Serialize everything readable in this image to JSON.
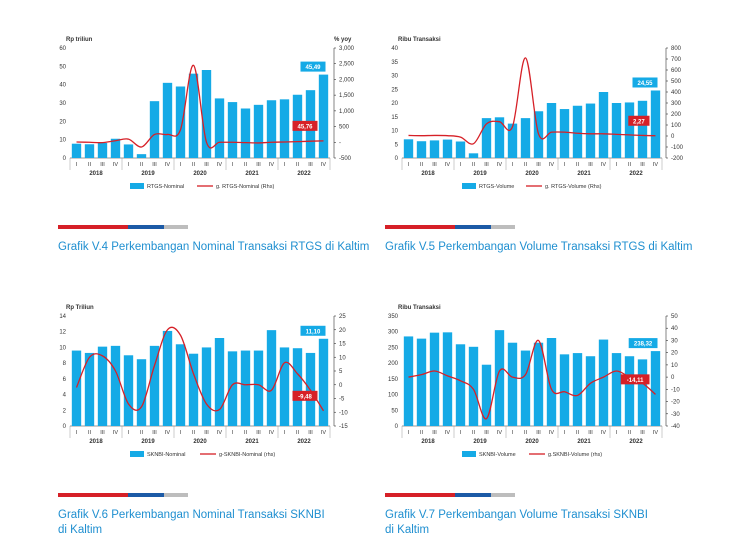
{
  "colors": {
    "bar": "#15aae6",
    "line": "#d62027",
    "axis": "#333333",
    "label_bg_bar": "#15aae6",
    "label_bg_line": "#d62027",
    "caption": "#1f8fd0",
    "stripe_red": "#d62027",
    "stripe_blue": "#1c5aa6",
    "stripe_grey": "#bdbdbd"
  },
  "quarters": [
    "I",
    "II",
    "III",
    "IV",
    "I",
    "II",
    "III",
    "IV",
    "I",
    "II",
    "III",
    "IV",
    "I",
    "II",
    "III",
    "IV",
    "I",
    "II",
    "III",
    "IV"
  ],
  "years": [
    "2018",
    "2019",
    "2020",
    "2021",
    "2022"
  ],
  "chart_data": [
    {
      "type": "bar",
      "title": "Grafik V.4 Perkembangan Nominal Transaksi RTGS di Kaltim",
      "ylabel": "Rp triliun",
      "y2label": "% yoy",
      "ylim": [
        0,
        60
      ],
      "yticks": [
        "0",
        "10",
        "20",
        "30",
        "40",
        "50",
        "60"
      ],
      "y2lim": [
        -500,
        3000
      ],
      "y2ticks": [
        "-500",
        "-",
        "500",
        "1,000",
        "1,500",
        "2,000",
        "2,500",
        "3,000"
      ],
      "series": [
        {
          "name": "RTGS-Nominal",
          "type": "bar",
          "values": [
            7.8,
            7.5,
            8.2,
            10.5,
            7.4,
            2.1,
            31,
            41,
            39,
            46,
            48,
            32.5,
            30.5,
            27,
            29,
            31.5,
            32,
            34.5,
            37,
            45.49
          ]
        },
        {
          "name": "g. RTGS-Nominal (Rhs)",
          "type": "line",
          "axis": "right",
          "values": [
            10,
            0,
            -10,
            50,
            100,
            -150,
            250,
            250,
            400,
            2450,
            0,
            0,
            0,
            -10,
            -20,
            0,
            10,
            20,
            35,
            45.76
          ]
        }
      ],
      "bar_label": "45,49",
      "line_label": "45,76"
    },
    {
      "type": "bar",
      "title": "Grafik V.5 Perkembangan Volume Transaksi RTGS di Kaltim",
      "ylabel": "Ribu Transaksi",
      "ylim": [
        0,
        40
      ],
      "yticks": [
        "0",
        "5",
        "10",
        "15",
        "20",
        "25",
        "30",
        "35",
        "40"
      ],
      "y2lim": [
        -200,
        800
      ],
      "y2ticks": [
        "-200",
        "-100",
        "0",
        "100",
        "200",
        "300",
        "400",
        "500",
        "600",
        "700",
        "800"
      ],
      "series": [
        {
          "name": "RTGS-Volume",
          "type": "bar",
          "values": [
            6.8,
            6.1,
            6.4,
            6.7,
            6.0,
            1.7,
            14.5,
            14.8,
            12.5,
            14.5,
            17,
            20,
            17.8,
            19,
            19.8,
            24,
            20,
            20.2,
            20.8,
            24.55
          ]
        },
        {
          "name": "g. RTGS-Volume (Rhs)",
          "type": "line",
          "axis": "right",
          "values": [
            5,
            3,
            5,
            3,
            -10,
            -70,
            110,
            130,
            85,
            710,
            20,
            35,
            35,
            25,
            20,
            20,
            15,
            10,
            5,
            2.27
          ]
        }
      ],
      "bar_label": "24,55",
      "line_label": "2,27"
    },
    {
      "type": "bar",
      "title": "Grafik V.6 Perkembangan Nominal Transaksi SKNBI di Kaltim",
      "ylabel": "Rp Triliun",
      "ylim": [
        0,
        14
      ],
      "yticks": [
        "0",
        "2",
        "4",
        "6",
        "8",
        "10",
        "12",
        "14"
      ],
      "y2lim": [
        -15,
        25
      ],
      "y2ticks": [
        "-15",
        "-10",
        "-5",
        "0",
        "5",
        "10",
        "15",
        "20",
        "25"
      ],
      "series": [
        {
          "name": "SKNBI-Nominal",
          "type": "bar",
          "values": [
            9.6,
            9.3,
            10.1,
            10.2,
            9.0,
            8.5,
            10.2,
            12.1,
            10.4,
            9.2,
            10.0,
            11.2,
            9.5,
            9.6,
            9.6,
            12.2,
            10.0,
            9.9,
            9.3,
            11.1
          ]
        },
        {
          "name": "g-SKNBI-Nominal (rhs)",
          "type": "line",
          "axis": "right",
          "values": [
            -1,
            10,
            10.5,
            5,
            -7,
            -8,
            7,
            20,
            18,
            4,
            -7,
            -9,
            0,
            0,
            0,
            -2,
            8,
            4,
            -2,
            -9.48
          ]
        }
      ],
      "bar_label": "11,10",
      "line_label": "-9,48"
    },
    {
      "type": "bar",
      "title": "Grafik V.7 Perkembangan Volume Transaksi SKNBI di Kaltim",
      "ylabel": "Ribu Transaksi",
      "ylim": [
        0,
        350
      ],
      "yticks": [
        "0",
        "50",
        "100",
        "150",
        "200",
        "250",
        "300",
        "350"
      ],
      "y2lim": [
        -40,
        50
      ],
      "y2ticks": [
        "-40",
        "-30",
        "-20",
        "-10",
        "0",
        "10",
        "20",
        "30",
        "40",
        "50"
      ],
      "series": [
        {
          "name": "SKNBI-Volume",
          "type": "bar",
          "values": [
            285,
            278,
            297,
            298,
            260,
            252,
            195,
            305,
            265,
            240,
            265,
            280,
            228,
            232,
            222,
            275,
            232,
            222,
            212,
            238.32
          ]
        },
        {
          "name": "g.SKNBI-Volume (rhs)",
          "type": "line",
          "axis": "right",
          "values": [
            0,
            2,
            5,
            1,
            -3,
            -10,
            -34,
            5,
            0,
            2,
            30,
            -10,
            -12,
            -15,
            -5,
            0,
            5,
            0,
            -5,
            -14.11
          ]
        }
      ],
      "bar_label": "238,32",
      "line_label": "-14,11"
    }
  ],
  "captions": [
    [
      "Grafik V.4 Perkembangan Nominal Transaksi RTGS di Kaltim"
    ],
    [
      "Grafik V.5 Perkembangan Volume Transaksi RTGS di Kaltim"
    ],
    [
      "Grafik V.6 Perkembangan Nominal Transaksi SKNBI",
      "di Kaltim"
    ],
    [
      "Grafik V.7 Perkembangan Volume Transaksi SKNBI",
      "di Kaltim"
    ]
  ]
}
